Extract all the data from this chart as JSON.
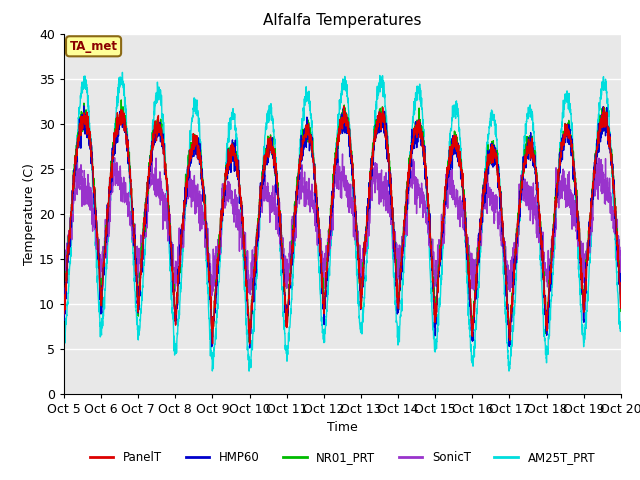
{
  "title": "Alfalfa Temperatures",
  "xlabel": "Time",
  "ylabel": "Temperature (C)",
  "ylim": [
    0,
    40
  ],
  "days": 15,
  "x_tick_labels": [
    "Oct 5",
    "Oct 6",
    "Oct 7",
    "Oct 8",
    "Oct 9",
    "Oct 10",
    "Oct 11",
    "Oct 12",
    "Oct 13",
    "Oct 14",
    "Oct 15",
    "Oct 16",
    "Oct 17",
    "Oct 18",
    "Oct 19",
    "Oct 20"
  ],
  "annotation_text": "TA_met",
  "annotation_color": "#8B0000",
  "annotation_bg": "#FFFF99",
  "annotation_edge": "#8B6914",
  "colors": {
    "PanelT": "#DD0000",
    "HMP60": "#0000CC",
    "NR01_PRT": "#00BB00",
    "SonicT": "#9933CC",
    "AM25T_PRT": "#00DDDD"
  },
  "background_color": "#E8E8E8",
  "grid_color": "#FFFFFF",
  "n_points": 2880,
  "fig_width": 6.4,
  "fig_height": 4.8,
  "dpi": 100
}
